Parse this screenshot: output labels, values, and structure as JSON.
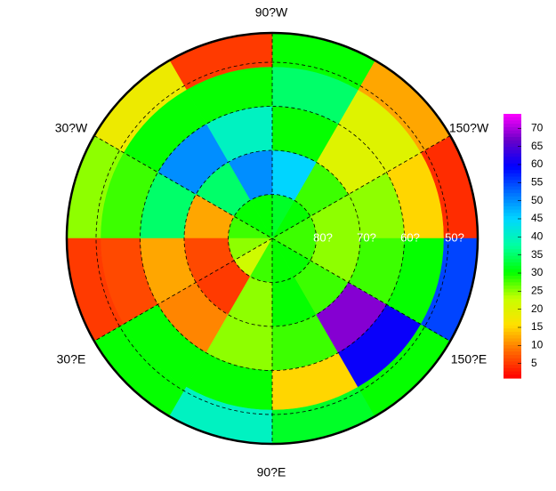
{
  "chart_data": {
    "type": "polar_heatmap",
    "lon_labels": [
      "90?W",
      "30?W",
      "150?W",
      "30?E",
      "150?E",
      "90?E"
    ],
    "lat_labels": [
      "80?",
      "70?",
      "60?",
      "50?"
    ],
    "lats": [
      85,
      75,
      65,
      55,
      47
    ],
    "lons": [
      -165,
      -135,
      -105,
      -75,
      -45,
      -15,
      15,
      45,
      75,
      105,
      135,
      165
    ],
    "values": [
      [
        28,
        30,
        32,
        30,
        30,
        28,
        25,
        22,
        28,
        30,
        30,
        28
      ],
      [
        25,
        28,
        45,
        50,
        35,
        12,
        6,
        5,
        25,
        30,
        28,
        25
      ],
      [
        25,
        20,
        30,
        40,
        50,
        35,
        12,
        10,
        25,
        28,
        68,
        28
      ],
      [
        15,
        20,
        35,
        30,
        30,
        28,
        6,
        30,
        30,
        15,
        60,
        30
      ],
      [
        4,
        12,
        30,
        5,
        18,
        25,
        5,
        30,
        40,
        32,
        30,
        55
      ]
    ],
    "zlim": [
      1,
      74
    ],
    "cticks": [
      5,
      10,
      15,
      20,
      25,
      30,
      35,
      40,
      45,
      50,
      55,
      60,
      65,
      70
    ],
    "colors": [
      "#ff0000",
      "#ff6a00",
      "#ffe000",
      "#c8ff00",
      "#00ff00",
      "#00ffa0",
      "#00d8ff",
      "#0070ff",
      "#0000ff",
      "#6a00c8",
      "#ff00ff"
    ]
  }
}
